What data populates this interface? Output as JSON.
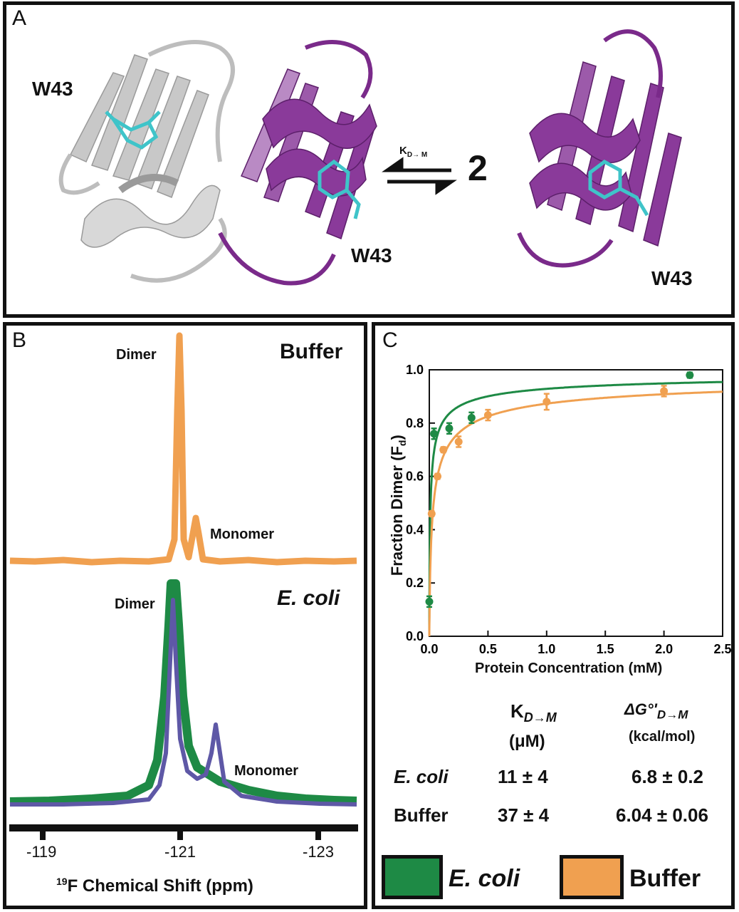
{
  "figure": {
    "panel_a": {
      "label": "A",
      "residue_left": "W43",
      "residue_mid": "W43",
      "residue_right": "W43",
      "kd_label_main": "K",
      "kd_label_sub": "D→ M",
      "stoich": "2",
      "colors": {
        "chain_grey": "#c9c9c9",
        "chain_purple": "#8a3a9a",
        "trp": "#3fc4c9"
      }
    },
    "panel_b": {
      "label": "B",
      "buffer_title": "Buffer",
      "ecoli_title": "E. coli",
      "dimer_label_top": "Dimer",
      "monomer_label_top": "Monomer",
      "dimer_label_bottom": "Dimer",
      "monomer_label_bottom": "Monomer",
      "x_ticks": [
        "-119",
        "-121",
        "-123"
      ],
      "x_axis_sup": "19",
      "x_axis_label": "F Chemical Shift (ppm)",
      "colors": {
        "buffer": "#f0a050",
        "ecoli": "#1e8a45",
        "ecoli_mono": "#5e58a6"
      }
    },
    "panel_c": {
      "label": "C",
      "table": {
        "col1_header_main": "K",
        "col1_header_sub": "D→M",
        "col1_unit": "(μM)",
        "col2_header_main": "ΔG°'",
        "col2_header_sub": "D→M",
        "col2_unit": "(kcal/mol)",
        "rows": [
          {
            "name": "E. coli",
            "kd": "11 ± 4",
            "dg": "6.8 ± 0.2"
          },
          {
            "name": "Buffer",
            "kd": "37 ± 4",
            "dg": "6.04 ± 0.06"
          }
        ]
      },
      "legend": [
        {
          "label": "E. coli",
          "color": "#1e8a45"
        },
        {
          "label": "Buffer",
          "color": "#f0a050"
        }
      ]
    }
  },
  "chart_data": {
    "type": "scatter",
    "xlabel": "Protein Concentration (mM)",
    "ylabel_main": "Fraction Dimer (F",
    "ylabel_sub": "d",
    "ylabel_end": ")",
    "xlim": [
      0,
      2.5
    ],
    "ylim": [
      0,
      1.0
    ],
    "x_ticks": [
      "0.0",
      "0.5",
      "1.0",
      "1.5",
      "2.0",
      "2.5"
    ],
    "y_ticks": [
      "0.0",
      "0.2",
      "0.4",
      "0.6",
      "0.8",
      "1.0"
    ],
    "series": [
      {
        "name": "E. coli",
        "color": "#1e8a45",
        "kd_mM": 0.011,
        "points": [
          {
            "x": 0.0,
            "y": 0.13,
            "err": 0.02
          },
          {
            "x": 0.04,
            "y": 0.76,
            "err": 0.02
          },
          {
            "x": 0.17,
            "y": 0.78,
            "err": 0.02
          },
          {
            "x": 0.36,
            "y": 0.82,
            "err": 0.02
          },
          {
            "x": 2.22,
            "y": 0.98,
            "err": 0.01
          }
        ]
      },
      {
        "name": "Buffer",
        "color": "#f0a050",
        "kd_mM": 0.037,
        "points": [
          {
            "x": 0.02,
            "y": 0.46,
            "err": 0.01
          },
          {
            "x": 0.07,
            "y": 0.6,
            "err": 0.01
          },
          {
            "x": 0.12,
            "y": 0.7,
            "err": 0.01
          },
          {
            "x": 0.25,
            "y": 0.73,
            "err": 0.02
          },
          {
            "x": 0.5,
            "y": 0.83,
            "err": 0.02
          },
          {
            "x": 1.0,
            "y": 0.88,
            "err": 0.03
          },
          {
            "x": 2.0,
            "y": 0.92,
            "err": 0.02
          }
        ]
      }
    ]
  }
}
